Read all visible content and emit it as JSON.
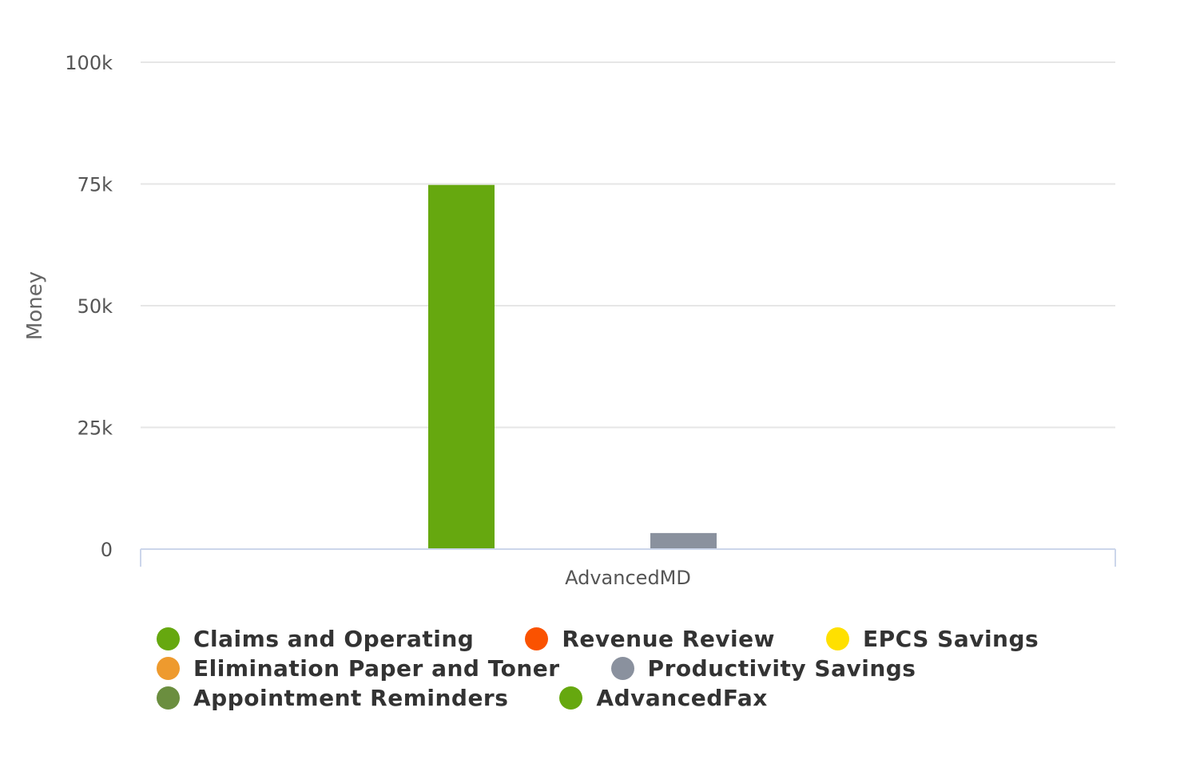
{
  "chart_data": {
    "type": "bar",
    "categories": [
      "AdvancedMD"
    ],
    "ylabel": "Money",
    "ylim": [
      0,
      100000
    ],
    "yticks": [
      {
        "value": 0,
        "label": "0"
      },
      {
        "value": 25000,
        "label": "25k"
      },
      {
        "value": 50000,
        "label": "50k"
      },
      {
        "value": 75000,
        "label": "75k"
      },
      {
        "value": 100000,
        "label": "100k"
      }
    ],
    "grid": true,
    "legend_position": "bottom",
    "series": [
      {
        "name": "Claims and Operating",
        "color": "#66a80f",
        "values": [
          74800
        ]
      },
      {
        "name": "Revenue Review",
        "color": "#fa5200",
        "values": [
          0
        ]
      },
      {
        "name": "EPCS Savings",
        "color": "#ffe000",
        "values": [
          0
        ]
      },
      {
        "name": "Elimination Paper and Toner",
        "color": "#ee9a2e",
        "values": [
          0
        ]
      },
      {
        "name": "Productivity Savings",
        "color": "#8a919e",
        "values": [
          3300
        ]
      },
      {
        "name": "Appointment Reminders",
        "color": "#6b8e3f",
        "values": [
          0
        ]
      },
      {
        "name": "AdvancedFax",
        "color": "#66a80f",
        "values": [
          0
        ]
      }
    ],
    "legend_rows": [
      [
        0,
        1,
        2
      ],
      [
        3,
        4
      ],
      [
        5,
        6
      ]
    ]
  }
}
